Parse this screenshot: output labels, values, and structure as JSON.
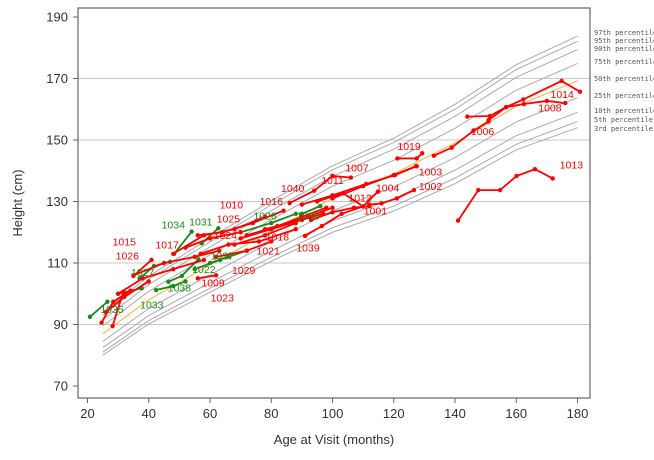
{
  "chart_data": {
    "type": "line",
    "xlabel": "Age at Visit (months)",
    "ylabel": "Height (cm)",
    "xlim": [
      18,
      182
    ],
    "ylim": [
      66,
      194
    ],
    "xticks": [
      "20",
      "40",
      "60",
      "80",
      "100",
      "120",
      "140",
      "160",
      "180"
    ],
    "yticks": [
      "70",
      "90",
      "110",
      "130",
      "150",
      "170",
      "190"
    ],
    "grid": "horizontal",
    "colors": {
      "above_median": "#ff0000",
      "below_median": "#1a8a1a",
      "median": "#ffb030",
      "percentile": "#aaaaaa"
    },
    "percentile_ages": [
      25,
      40,
      60,
      80,
      100,
      120,
      140,
      160,
      180
    ],
    "percentiles": [
      {
        "name": "97th percentile",
        "values": [
          94,
          105.7,
          118.1,
          130.2,
          141.6,
          150.6,
          161.6,
          174.5,
          183.8
        ]
      },
      {
        "name": "95th percentile",
        "values": [
          93,
          104.7,
          116.9,
          128.9,
          140.3,
          149.2,
          160,
          172.9,
          182.1
        ]
      },
      {
        "name": "90th percentile",
        "values": [
          91.5,
          103,
          115.2,
          127,
          138.2,
          147,
          157.7,
          170.4,
          179.4
        ]
      },
      {
        "name": "75th percentile",
        "values": [
          89.5,
          100.8,
          112.6,
          124.1,
          135,
          143.4,
          153.8,
          166.2,
          174.9
        ]
      },
      {
        "name": "50th percentile",
        "values": [
          87,
          98,
          109.4,
          120.5,
          131,
          139,
          149,
          161,
          169.3
        ]
      },
      {
        "name": "25th percentile",
        "values": [
          84.5,
          95.2,
          106.2,
          116.9,
          127,
          134.7,
          144.3,
          155.9,
          163.8
        ]
      },
      {
        "name": "10th percentile",
        "values": [
          82.5,
          92.9,
          103.6,
          113.9,
          123.7,
          130.9,
          140.2,
          151.4,
          159
        ]
      },
      {
        "name": "5th percentile",
        "values": [
          81,
          91.3,
          101.8,
          111.9,
          121.5,
          128.5,
          137.6,
          148.6,
          156
        ]
      },
      {
        "name": "3rd percentile",
        "values": [
          80,
          90.2,
          100.5,
          110.6,
          120,
          126.9,
          135.8,
          146.8,
          154
        ]
      }
    ],
    "series": [
      {
        "name": "1034",
        "group": "green",
        "points": [
          [
            48.3,
            113
          ],
          [
            54,
            120.2
          ]
        ],
        "label_at": [
          48,
          122.5
        ]
      },
      {
        "name": "1031",
        "group": "green",
        "points": [
          [
            57.3,
            116.4
          ],
          [
            62.7,
            121.3
          ]
        ],
        "label_at": [
          57,
          123.5
        ]
      },
      {
        "name": "1027",
        "group": "green",
        "points": [
          [
            37,
            105
          ],
          [
            41.7,
            109
          ],
          [
            47,
            110.4
          ]
        ],
        "label_at": [
          38,
          107
        ]
      },
      {
        "name": "1033",
        "group": "green",
        "points": [
          [
            42.4,
            101.2
          ],
          [
            48,
            102.5
          ],
          [
            52,
            104
          ]
        ],
        "label_at": [
          41,
          96.5
        ]
      },
      {
        "name": "1038",
        "group": "green",
        "points": [
          [
            46.4,
            103.9
          ],
          [
            50.8,
            105.8
          ],
          [
            56.2,
            111.2
          ]
        ],
        "label_at": [
          50,
          102
        ]
      },
      {
        "name": "1022",
        "group": "green",
        "points": [
          [
            55,
            108
          ],
          [
            63.3,
            111
          ]
        ],
        "label_at": [
          58,
          108
        ]
      },
      {
        "name": "1037",
        "group": "green",
        "points": [
          [
            60,
            110
          ],
          [
            66,
            112
          ],
          [
            72,
            114
          ]
        ],
        "label_at": [
          64,
          110.5
        ]
      },
      {
        "name": "1035",
        "group": "green",
        "points": [
          [
            20.8,
            92.5
          ],
          [
            26.5,
            97.4
          ]
        ],
        "label_at": [
          28,
          95
        ]
      },
      {
        "name": "1028",
        "group": "green",
        "points": [
          [
            70,
            120
          ],
          [
            80,
            123
          ],
          [
            88,
            126
          ]
        ],
        "label_at": [
          78,
          125.5
        ]
      },
      {
        "name": "1030",
        "group": "green",
        "points": [
          [
            90,
            126
          ],
          [
            96,
            128.5
          ]
        ],
        "label_at": [
          92,
          125.5
        ]
      },
      {
        "group": "green",
        "points": [
          [
            30,
            100
          ],
          [
            37.7,
            101.8
          ]
        ]
      },
      {
        "name": "1015",
        "group": "red",
        "points": [
          [
            35,
            105.8
          ],
          [
            40.9,
            111
          ]
        ],
        "label_at": [
          32,
          117
        ]
      },
      {
        "name": "1026",
        "group": "red",
        "points": [
          [
            30,
            100
          ],
          [
            38,
            105
          ],
          [
            48,
            108
          ],
          [
            58,
            111
          ]
        ],
        "label_at": [
          33,
          112.5
        ]
      },
      {
        "name": "1017",
        "group": "red",
        "points": [
          [
            35,
            106
          ],
          [
            45,
            110
          ],
          [
            55,
            112
          ],
          [
            63,
            114
          ]
        ],
        "label_at": [
          46,
          116
        ]
      },
      {
        "name": "1010",
        "group": "red",
        "points": [
          [
            56,
            119
          ],
          [
            64,
            120
          ],
          [
            74,
            123
          ],
          [
            84,
            127
          ]
        ],
        "label_at": [
          67,
          129
        ]
      },
      {
        "name": "1025",
        "group": "red",
        "points": [
          [
            48,
            113
          ],
          [
            58,
            119
          ],
          [
            68,
            121
          ],
          [
            78,
            125
          ]
        ],
        "label_at": [
          66,
          126.5
        ]
      },
      {
        "name": "1024",
        "group": "red",
        "points": [
          [
            52,
            115
          ],
          [
            60,
            118
          ],
          [
            70,
            120
          ]
        ],
        "label_at": [
          65,
          125
        ]
      },
      {
        "name": "1009",
        "group": "red",
        "points": [
          [
            57,
            113
          ],
          [
            66,
            116
          ],
          [
            76,
            117
          ],
          [
            88,
            121
          ]
        ],
        "label_at": [
          61,
          116
        ]
      },
      {
        "name": "1029",
        "group": "red",
        "points": [
          [
            62,
            112
          ],
          [
            72,
            114
          ],
          [
            80,
            117
          ]
        ],
        "label_at": [
          71,
          113
        ]
      },
      {
        "name": "1021",
        "group": "red",
        "points": [
          [
            68,
            116
          ],
          [
            78,
            119
          ],
          [
            88,
            123
          ]
        ],
        "label_at": [
          79,
          114
        ]
      },
      {
        "name": "1018",
        "group": "red",
        "points": [
          [
            70,
            118
          ],
          [
            80,
            121
          ],
          [
            90,
            124
          ],
          [
            97,
            126
          ]
        ],
        "label_at": [
          82,
          118
        ]
      },
      {
        "name": "1016",
        "group": "red",
        "points": [
          [
            72,
            119
          ],
          [
            82,
            122
          ],
          [
            90,
            125
          ],
          [
            98,
            128
          ]
        ],
        "label_at": [
          80,
          121
        ]
      },
      {
        "name": "1040",
        "group": "red",
        "points": [
          [
            78,
            121
          ],
          [
            86,
            123
          ],
          [
            92,
            125
          ],
          [
            100,
            128
          ]
        ],
        "label_at": [
          87,
          124
        ]
      },
      {
        "name": "1023",
        "group": "red",
        "points": [
          [
            56,
            105
          ],
          [
            62,
            106
          ]
        ],
        "label_at": [
          64,
          104
        ]
      },
      {
        "name": "1039",
        "group": "red",
        "points": [
          [
            91,
            118.8
          ],
          [
            96.5,
            122
          ],
          [
            103,
            126
          ],
          [
            110,
            128.4
          ]
        ],
        "label_at": [
          92,
          115
        ]
      },
      {
        "name": "1001",
        "group": "red",
        "points": [
          [
            93,
            124
          ],
          [
            100,
            126.5
          ],
          [
            107,
            128
          ],
          [
            112,
            128.5
          ]
        ],
        "label_at": [
          114,
          127
        ]
      },
      {
        "name": "1012",
        "group": "red",
        "points": [
          [
            95,
            130
          ],
          [
            103.5,
            132.7
          ],
          [
            110,
            128.4
          ],
          [
            114.8,
            133.2
          ]
        ],
        "label_at": [
          109,
          130
        ]
      },
      {
        "name": "1004",
        "group": "red",
        "points": [
          [
            90,
            129
          ],
          [
            100,
            132
          ],
          [
            111,
            135.7
          ],
          [
            120.4,
            138.6
          ],
          [
            127.5,
            141.5
          ]
        ],
        "label_at": [
          118,
          134.5
        ]
      },
      {
        "name": "1002",
        "group": "red",
        "points": [
          [
            112,
            129
          ],
          [
            116,
            129.4
          ],
          [
            121,
            131
          ],
          [
            126.6,
            133.7
          ]
        ],
        "label_at": [
          132,
          135
        ]
      },
      {
        "name": "1003",
        "group": "red",
        "points": [
          [
            100,
            131
          ],
          [
            110,
            135
          ],
          [
            120,
            138.6
          ],
          [
            127.3,
            141.5
          ]
        ],
        "label_at": [
          132,
          138.5
        ]
      },
      {
        "name": "1007",
        "group": "red",
        "points": [
          [
            86,
            129.5
          ],
          [
            94,
            133.5
          ],
          [
            100,
            138.3
          ]
        ],
        "label_at": [
          108,
          141
        ]
      },
      {
        "name": "1011",
        "group": "red",
        "points": [
          [
            100,
            138.3
          ],
          [
            106,
            137.8
          ]
        ],
        "label_at": [
          100,
          137
        ]
      },
      {
        "name": "1019",
        "group": "red",
        "points": [
          [
            121.2,
            144
          ],
          [
            127.5,
            144
          ],
          [
            129.3,
            145.7
          ]
        ],
        "label_at": [
          125,
          148
        ]
      },
      {
        "name": "1006",
        "group": "red",
        "points": [
          [
            133.1,
            144.9
          ],
          [
            138.9,
            147.5
          ],
          [
            146,
            153
          ],
          [
            150.9,
            156
          ]
        ],
        "label_at": [
          149,
          153
        ]
      },
      {
        "name": "1008",
        "group": "red",
        "points": [
          [
            151,
            156.5
          ],
          [
            156.7,
            160.7
          ],
          [
            162.5,
            161.7
          ],
          [
            170,
            162.7
          ],
          [
            176,
            162
          ]
        ],
        "label_at": [
          171,
          160.5
        ]
      },
      {
        "name": "1014",
        "group": "red",
        "points": [
          [
            144,
            157.6
          ],
          [
            151.4,
            157.8
          ],
          [
            156.7,
            160.7
          ],
          [
            162.3,
            163.2
          ],
          [
            174.8,
            169.2
          ],
          [
            180.8,
            165.7
          ]
        ],
        "label_at": [
          175,
          163
        ]
      },
      {
        "name": "1013",
        "group": "red",
        "points": [
          [
            141,
            123.8
          ],
          [
            147.6,
            133.7
          ],
          [
            154.7,
            133.7
          ],
          [
            160.1,
            138.3
          ],
          [
            166.1,
            140.5
          ],
          [
            171.9,
            137.5
          ]
        ],
        "label_at": [
          178,
          142
        ]
      },
      {
        "group": "red",
        "points": [
          [
            24.6,
            90.6
          ],
          [
            28.4,
            97.4
          ],
          [
            34,
            101
          ]
        ]
      },
      {
        "group": "red",
        "points": [
          [
            28.2,
            89.5
          ],
          [
            31.7,
            100.7
          ]
        ]
      },
      {
        "group": "red",
        "points": [
          [
            26,
            94
          ],
          [
            32,
            99
          ],
          [
            40,
            104
          ]
        ]
      }
    ]
  }
}
